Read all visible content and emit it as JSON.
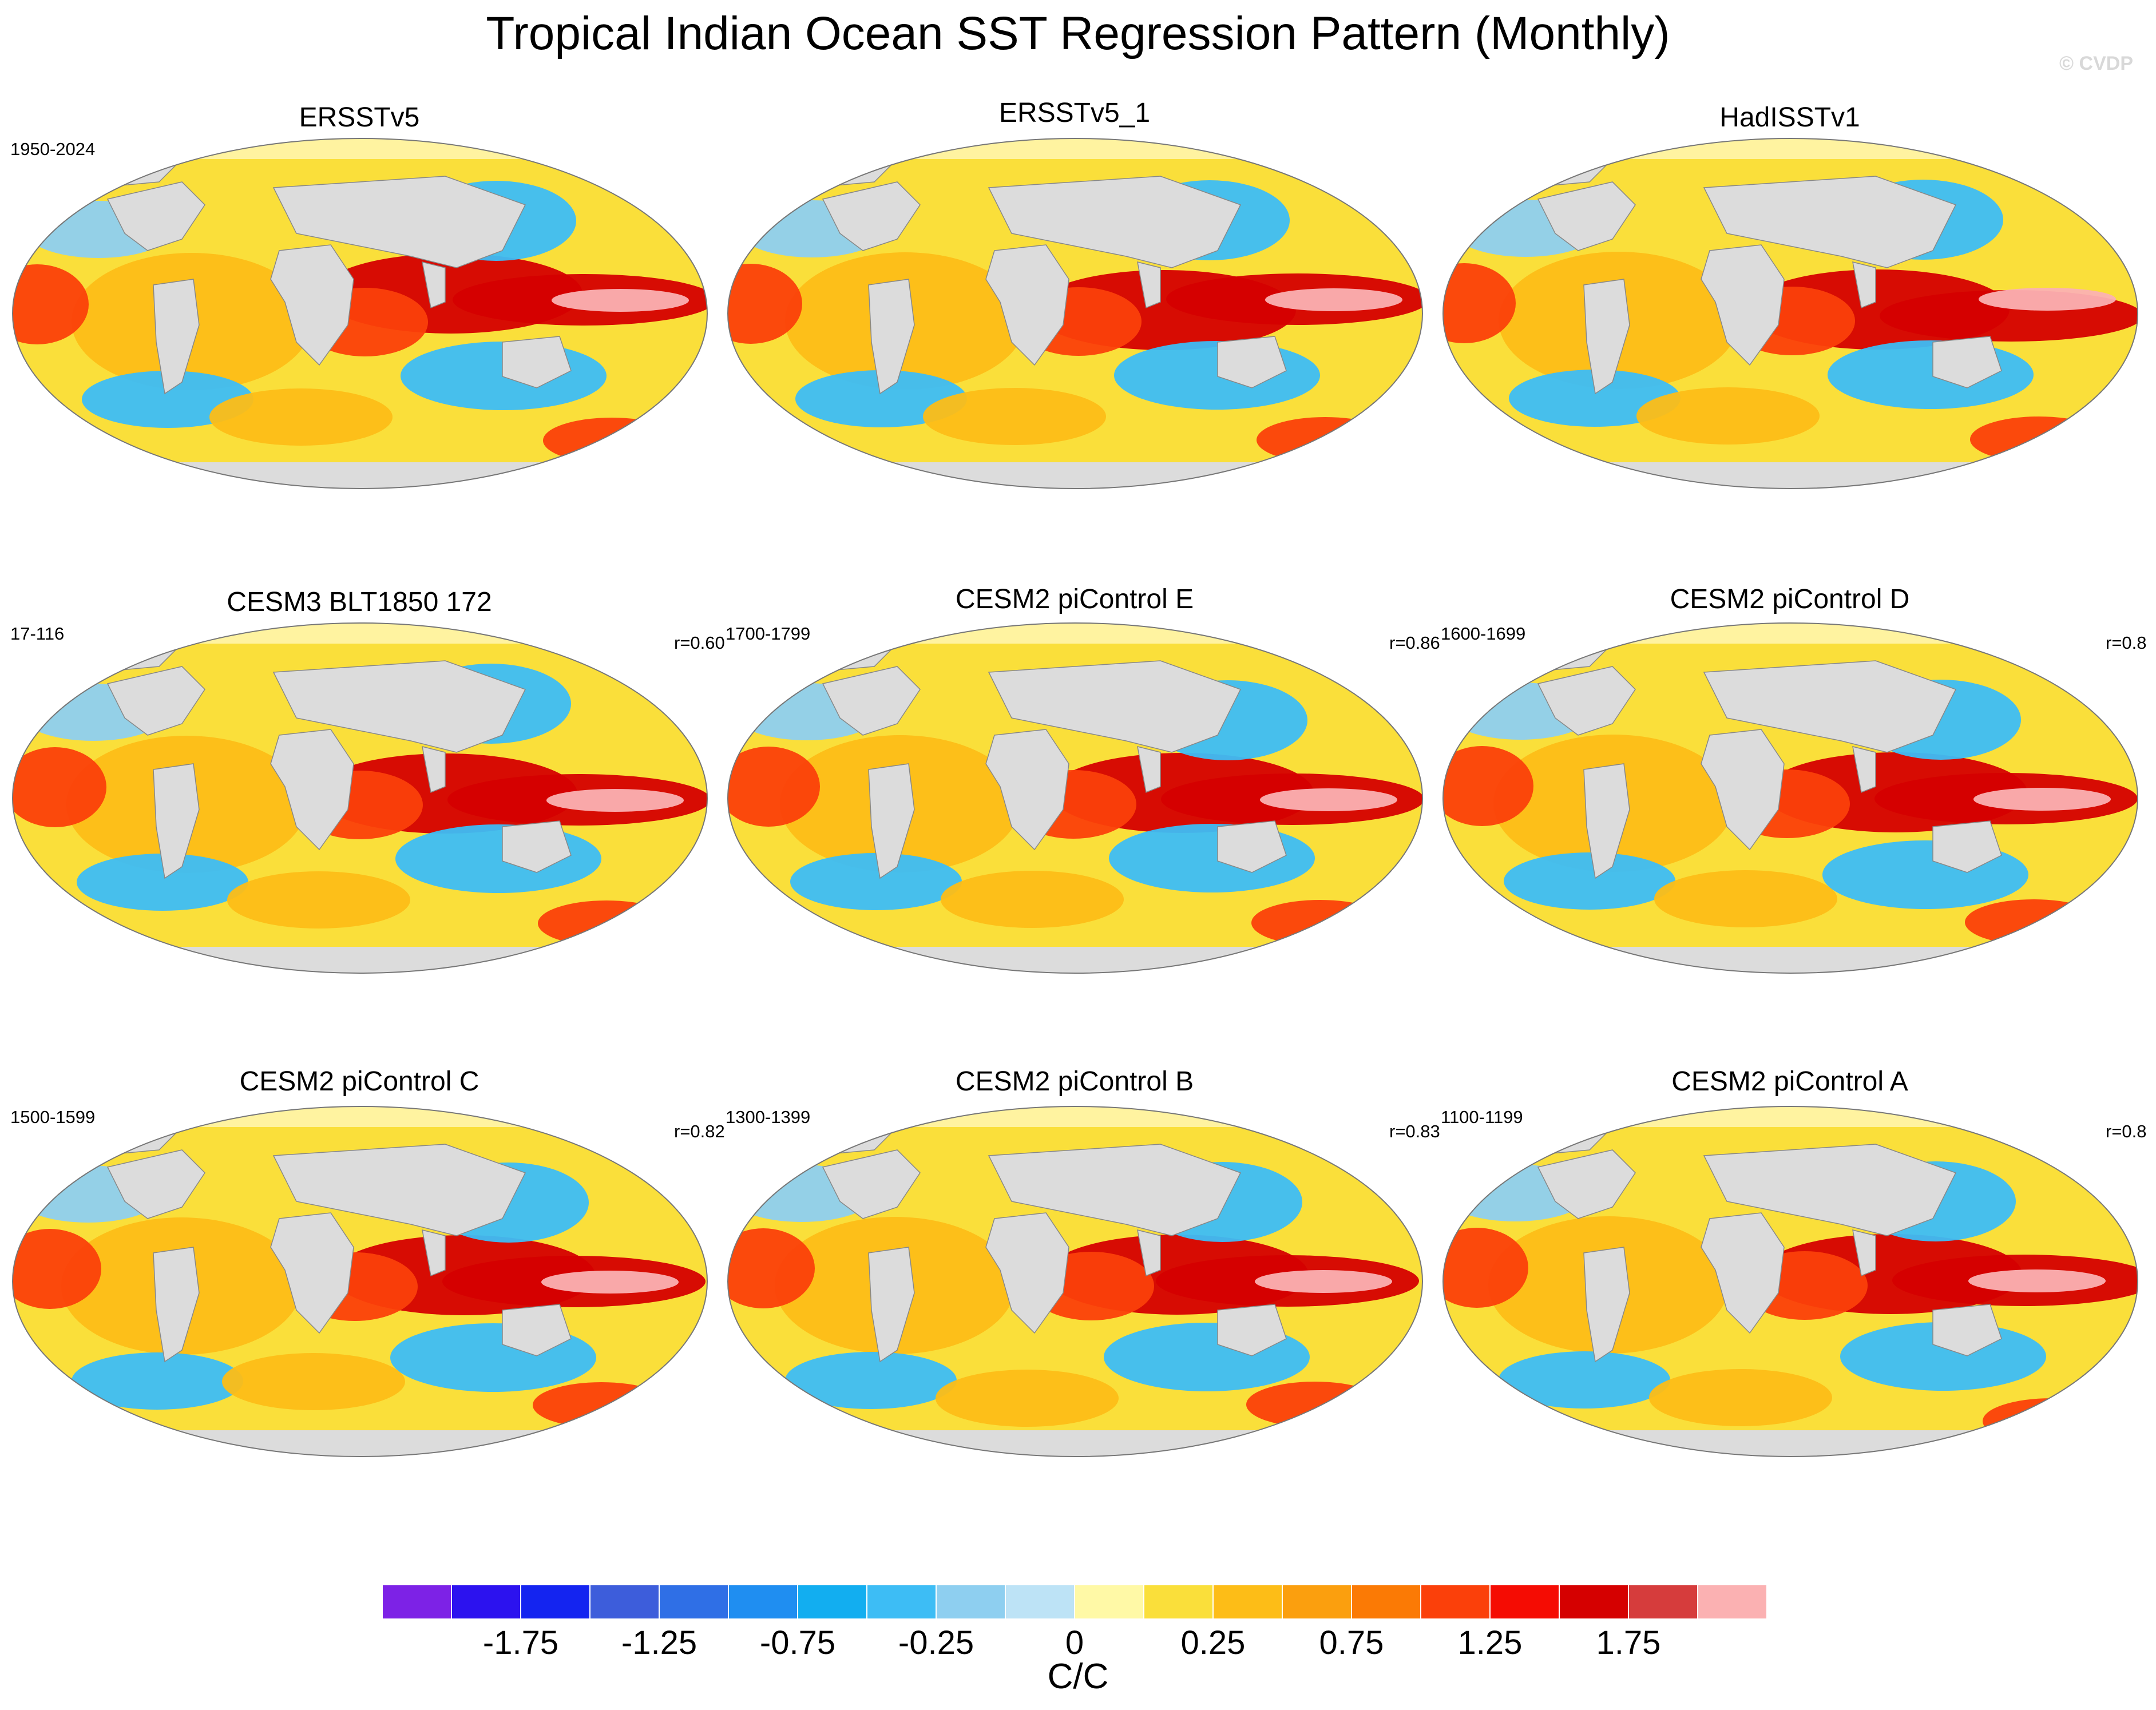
{
  "title": "Tropical Indian Ocean SST Regression Pattern (Monthly)",
  "watermark": "© CVDP",
  "panels": [
    {
      "title": "ERSSTv5",
      "left_note": "1950-2024",
      "right_note": ""
    },
    {
      "title": "ERSSTv5_1",
      "left_note": "",
      "right_note": ""
    },
    {
      "title": "HadISSTv1",
      "left_note": "",
      "right_note": ""
    },
    {
      "title": "CESM3 BLT1850 172",
      "left_note": "17-116",
      "right_note": "r=0.60"
    },
    {
      "title": "CESM2 piControl E",
      "left_note": "1700-1799",
      "right_note": "r=0.86"
    },
    {
      "title": "CESM2 piControl D",
      "left_note": "1600-1699",
      "right_note": "r=0.8"
    },
    {
      "title": "CESM2 piControl C",
      "left_note": "1500-1599",
      "right_note": "r=0.82"
    },
    {
      "title": "CESM2 piControl B",
      "left_note": "1300-1399",
      "right_note": "r=0.83"
    },
    {
      "title": "CESM2 piControl A",
      "left_note": "1100-1199",
      "right_note": "r=0.8"
    }
  ],
  "colorbar": {
    "colors": [
      "#7d22e6",
      "#2c12ef",
      "#1424f0",
      "#3d5ddb",
      "#2f6fe6",
      "#1f8ef1",
      "#12aef0",
      "#3dbdf5",
      "#8ecff0",
      "#bde3f6",
      "#fff9a6",
      "#fadf3a",
      "#fdbd17",
      "#fb9f0e",
      "#fb7a05",
      "#fb400a",
      "#f50c03",
      "#d50000",
      "#d63c3c",
      "#fbb1b2"
    ],
    "tick_labels": [
      "-1.75",
      "-1.25",
      "-0.75",
      "-0.25",
      "0",
      "0.25",
      "0.75",
      "1.25",
      "1.75"
    ],
    "units": "C/C"
  },
  "map_colors": {
    "land": "#dcdcdc",
    "ocean_neutral": "#fff3a0",
    "outline": "#888888"
  }
}
